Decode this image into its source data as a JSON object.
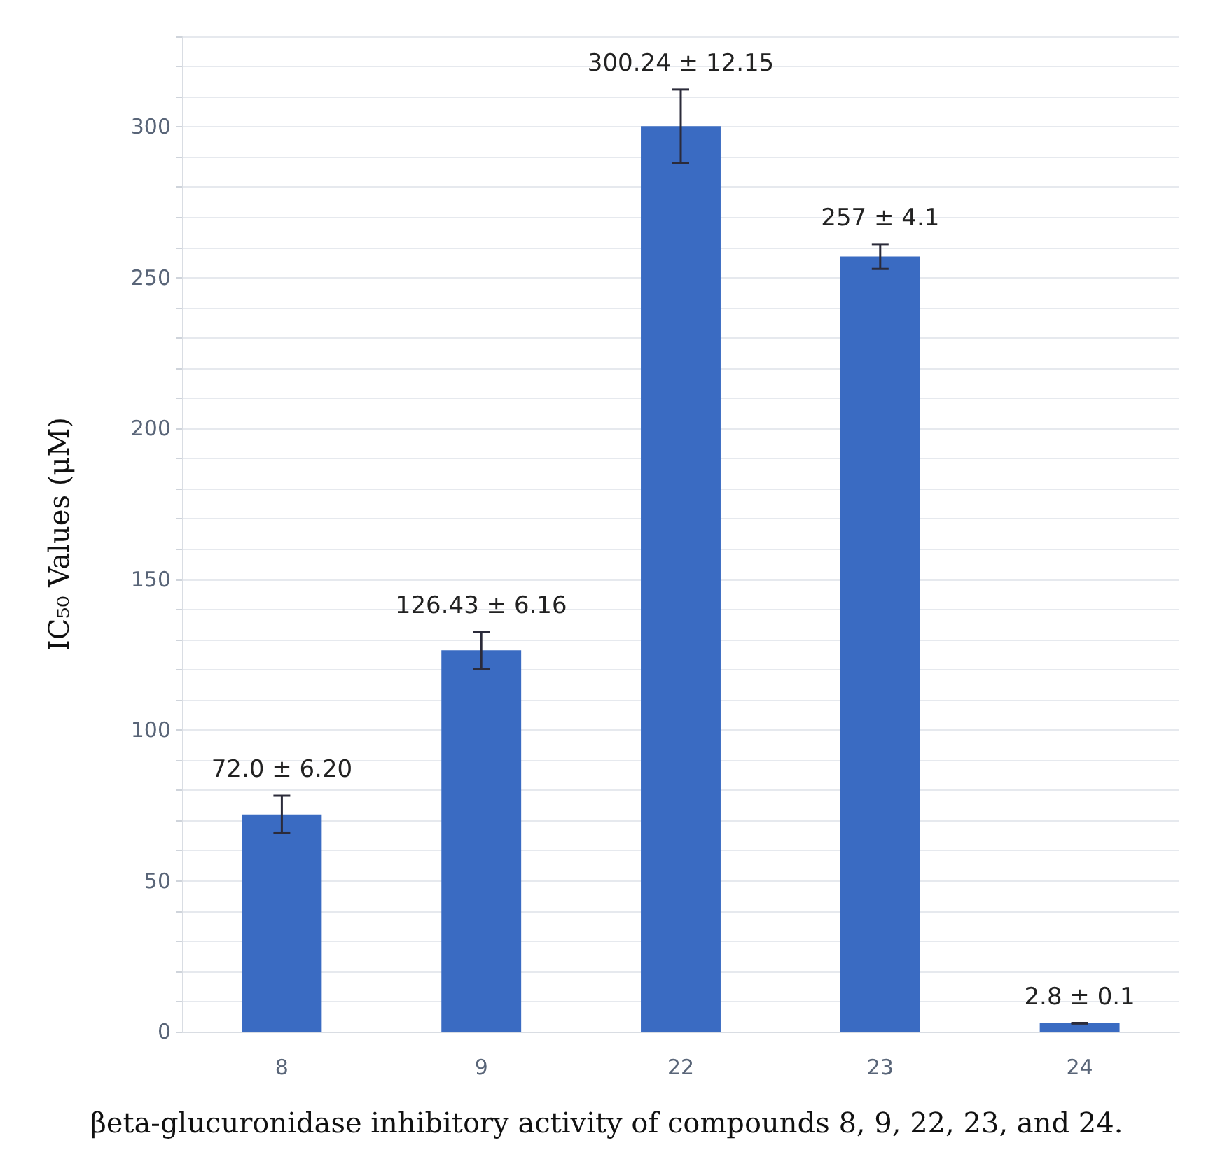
{
  "chart_data": {
    "type": "bar",
    "ylabel": "IC₅₀ Values (μM)",
    "categories": [
      "8",
      "9",
      "22",
      "23",
      "24"
    ],
    "values": [
      72.0,
      126.43,
      300.24,
      257,
      2.8
    ],
    "errors": [
      6.2,
      6.16,
      12.15,
      4.1,
      0.1
    ],
    "value_labels": [
      "72.0 ± 6.20",
      "126.43 ± 6.16",
      "300.24 ± 12.15",
      "257 ± 4.1",
      "2.8 ± 0.1"
    ],
    "color": "#3a6bc2",
    "ylim": [
      0,
      330
    ],
    "yticks": [
      0,
      {
        "value": 10,
        "label": null
      },
      {
        "value": 20,
        "label": null
      },
      {
        "value": 30,
        "label": null
      },
      {
        "value": 40,
        "label": null
      },
      50,
      {
        "value": 60,
        "label": null
      },
      {
        "value": 70,
        "label": null
      },
      {
        "value": 80,
        "label": null
      },
      {
        "value": 90,
        "label": null
      },
      100,
      {
        "value": 110,
        "label": null
      },
      {
        "value": 120,
        "label": null
      },
      {
        "value": 130,
        "label": null
      },
      {
        "value": 140,
        "label": null
      },
      150,
      {
        "value": 160,
        "label": null
      },
      {
        "value": 170,
        "label": null
      },
      {
        "value": 180,
        "label": null
      },
      {
        "value": 190,
        "label": null
      },
      200,
      {
        "value": 210,
        "label": null
      },
      {
        "value": 220,
        "label": null
      },
      {
        "value": 230,
        "label": null
      },
      {
        "value": 240,
        "label": null
      },
      250,
      {
        "value": 260,
        "label": null
      },
      {
        "value": 270,
        "label": null
      },
      {
        "value": 280,
        "label": null
      },
      {
        "value": 290,
        "label": null
      },
      300,
      {
        "value": 310,
        "label": null
      },
      {
        "value": 320,
        "label": null
      },
      {
        "value": 330,
        "label": null
      }
    ],
    "grid": "y",
    "annotations": [
      "βeta-glucuronidase inhibitory activity of compounds 8, 9, 22, 23, and 24."
    ]
  }
}
